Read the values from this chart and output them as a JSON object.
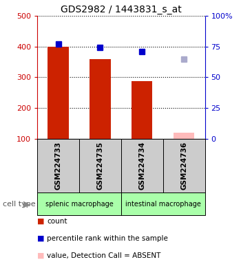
{
  "title": "GDS2982 / 1443831_s_at",
  "samples": [
    "GSM224733",
    "GSM224735",
    "GSM224734",
    "GSM224736"
  ],
  "bar_values": [
    400,
    360,
    287,
    120
  ],
  "bar_absent": [
    false,
    false,
    false,
    true
  ],
  "rank_values": [
    77,
    74,
    71,
    65
  ],
  "rank_absent": [
    false,
    false,
    false,
    true
  ],
  "ylim_left": [
    100,
    500
  ],
  "ylim_right": [
    0,
    100
  ],
  "yticks_left": [
    100,
    200,
    300,
    400,
    500
  ],
  "yticks_right": [
    0,
    25,
    50,
    75,
    100
  ],
  "yticklabels_right": [
    "0",
    "25",
    "50",
    "75",
    "100%"
  ],
  "group_color": "#aaffaa",
  "sample_box_color": "#cccccc",
  "cell_type_label": "cell type",
  "left_axis_color": "#cc0000",
  "right_axis_color": "#0000cc",
  "bar_width": 0.5,
  "marker_size": 6,
  "bar_color": "#cc2200",
  "bar_absent_color": "#ffbbbb",
  "rank_color": "#0000cc",
  "rank_absent_color": "#aaaacc"
}
